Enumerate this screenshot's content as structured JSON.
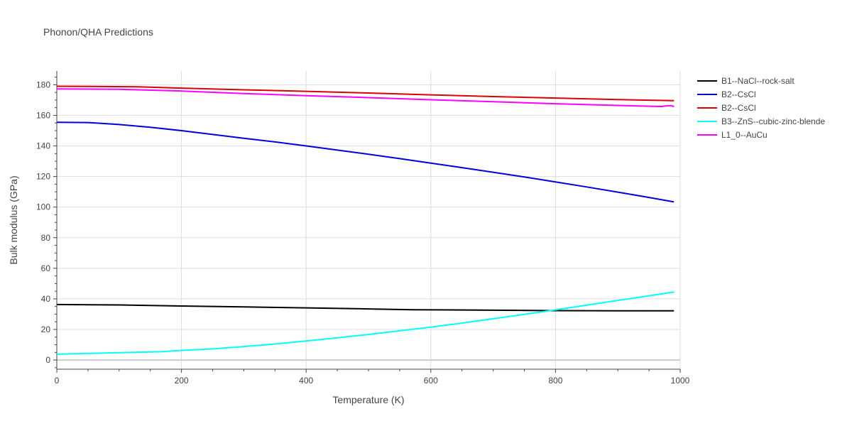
{
  "chart_data": {
    "type": "line",
    "title": "Phonon/QHA Predictions",
    "xlabel": "Temperature (K)",
    "ylabel": "Bulk modulus (GPa)",
    "xlim": [
      0,
      1000
    ],
    "ylim": [
      -6,
      189
    ],
    "xticks": [
      0,
      200,
      400,
      600,
      800,
      1000
    ],
    "yticks": [
      0,
      20,
      40,
      60,
      80,
      100,
      120,
      140,
      160,
      180
    ],
    "grid": true,
    "legend_position": "top-right",
    "series": [
      {
        "name": "B1--NaCl--rock-salt",
        "color": "#000000",
        "x": [
          0,
          100,
          200,
          300,
          400,
          500,
          570,
          700,
          800,
          900,
          990
        ],
        "y": [
          36.3,
          36.0,
          35.3,
          34.7,
          34.1,
          33.4,
          32.9,
          32.6,
          32.3,
          32.2,
          32.2
        ]
      },
      {
        "name": "B2--CsCl",
        "color": "#0000dd",
        "x": [
          0,
          50,
          100,
          150,
          200,
          250,
          300,
          350,
          400,
          450,
          500,
          550,
          600,
          650,
          700,
          750,
          800,
          850,
          900,
          950,
          990
        ],
        "y": [
          155.5,
          155.3,
          154.0,
          152.2,
          150.0,
          147.5,
          145.0,
          142.6,
          140.0,
          137.3,
          134.6,
          131.7,
          128.8,
          125.8,
          122.8,
          119.7,
          116.5,
          113.2,
          109.8,
          106.3,
          103.4
        ]
      },
      {
        "name": "B2--CsCl",
        "color": "#dd0000",
        "x": [
          0,
          130,
          200,
          300,
          400,
          500,
          600,
          700,
          800,
          900,
          990
        ],
        "y": [
          179.0,
          178.7,
          177.8,
          176.7,
          175.7,
          174.6,
          173.4,
          172.3,
          171.3,
          170.3,
          169.6
        ]
      },
      {
        "name": "B3--ZnS--cubic-zinc-blende",
        "color": "#00ffff",
        "x": [
          0,
          50,
          100,
          170,
          200,
          250,
          300,
          350,
          400,
          450,
          500,
          550,
          600,
          650,
          700,
          750,
          800,
          850,
          900,
          950,
          990
        ],
        "y": [
          3.8,
          4.3,
          4.8,
          5.5,
          6.3,
          7.3,
          8.8,
          10.5,
          12.5,
          14.5,
          16.7,
          19.1,
          21.5,
          24.2,
          27.0,
          29.9,
          32.8,
          35.9,
          39.0,
          42.0,
          44.5
        ]
      },
      {
        "name": "L1_0--AuCu",
        "color": "#ff00ff",
        "x": [
          0,
          100,
          200,
          300,
          400,
          500,
          600,
          700,
          800,
          900,
          970,
          980,
          985,
          990
        ],
        "y": [
          177.3,
          177.0,
          175.9,
          174.3,
          172.9,
          171.6,
          170.2,
          168.9,
          167.6,
          166.5,
          165.8,
          166.3,
          166.4,
          165.8
        ]
      }
    ]
  }
}
